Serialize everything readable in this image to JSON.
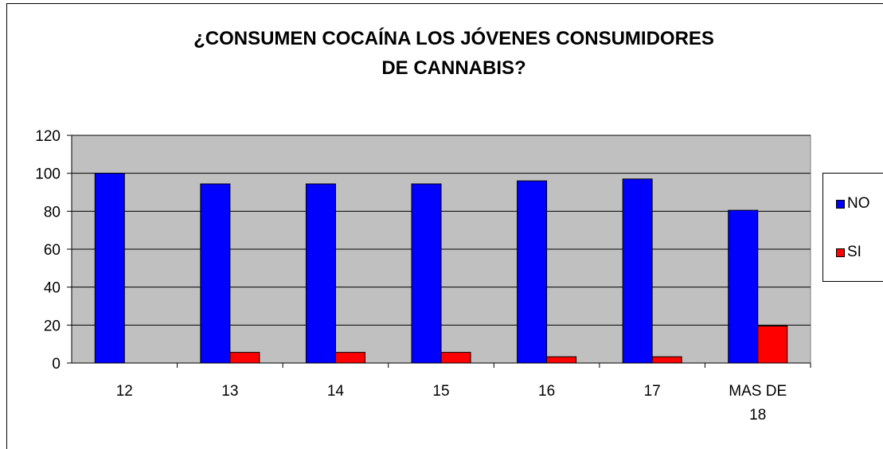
{
  "chart_data": {
    "type": "bar",
    "title": "¿CONSUMEN COCAÍNA LOS JÓVENES CONSUMIDORES DE CANNABIS?",
    "title_lines": [
      "¿CONSUMEN COCAÍNA LOS JÓVENES CONSUMIDORES",
      "DE CANNABIS?"
    ],
    "categories": [
      "12",
      "13",
      "14",
      "15",
      "16",
      "17",
      "MAS DE 18"
    ],
    "category_lines": [
      [
        "12"
      ],
      [
        "13"
      ],
      [
        "14"
      ],
      [
        "15"
      ],
      [
        "16"
      ],
      [
        "17"
      ],
      [
        "MAS DE",
        "18"
      ]
    ],
    "series": [
      {
        "name": "NO",
        "color": "#0000ff",
        "values": [
          100,
          94.4,
          94.4,
          94.4,
          96,
          97,
          80.5
        ]
      },
      {
        "name": "SI",
        "color": "#ff0000",
        "values": [
          0,
          5.6,
          5.6,
          5.6,
          3.3,
          3.3,
          19.5
        ]
      }
    ],
    "ylim": [
      0,
      120
    ],
    "yticks": [
      0,
      20,
      40,
      60,
      80,
      100,
      120
    ],
    "xlabel": "",
    "ylabel": "",
    "grid": true,
    "plot_background": "#c0c0c0",
    "legend_position": "right"
  }
}
